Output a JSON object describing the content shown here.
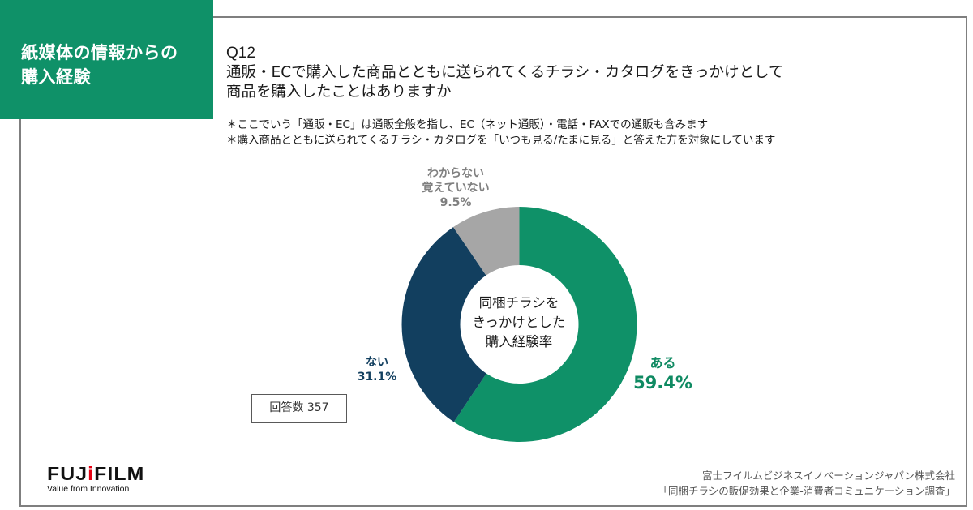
{
  "section": {
    "title_line1": "紙媒体の情報からの",
    "title_line2": "購入経験",
    "bg_color": "#0f9168"
  },
  "question": {
    "number": "Q12",
    "line1": "通販・ECで購入した商品とともに送られてくるチラシ・カタログをきっかけとして",
    "line2": "商品を購入したことはありますか"
  },
  "notes": [
    "＊ここでいう「通販・EC」は通販全般を指し、EC（ネット通販）・電話・FAXでの通販も含みます",
    "＊購入商品とともに送られてくるチラシ・カタログを「いつも見る/たまに見る」と答えた方を対象にしています"
  ],
  "respondents": "回答数 357",
  "logo": {
    "word_part1": "FUJ",
    "word_mark": "i",
    "word_part2": "FILM",
    "tagline": "Value from Innovation"
  },
  "source": {
    "line1": "富士フイルムビジネスイノベーションジャパン株式会社",
    "line2": "「同梱チラシの販促効果と企業-消費者コミュニケーション調査」"
  },
  "chart_data": {
    "type": "pie",
    "donut": true,
    "center_label": [
      "同梱チラシを",
      "きっかけとした",
      "購入経験率"
    ],
    "unit": "%",
    "start": "12 o'clock, clockwise",
    "slices": [
      {
        "key": "yes",
        "label": "ある",
        "value": 59.4,
        "value_label": "59.4%",
        "color": "#0f9168"
      },
      {
        "key": "no",
        "label": "ない",
        "value": 31.1,
        "value_label": "31.1%",
        "color": "#123f5f"
      },
      {
        "key": "unknown",
        "label_lines": [
          "わからない",
          "覚えていない"
        ],
        "value": 9.5,
        "value_label": "9.5%",
        "color": "#a6a6a6"
      }
    ]
  }
}
